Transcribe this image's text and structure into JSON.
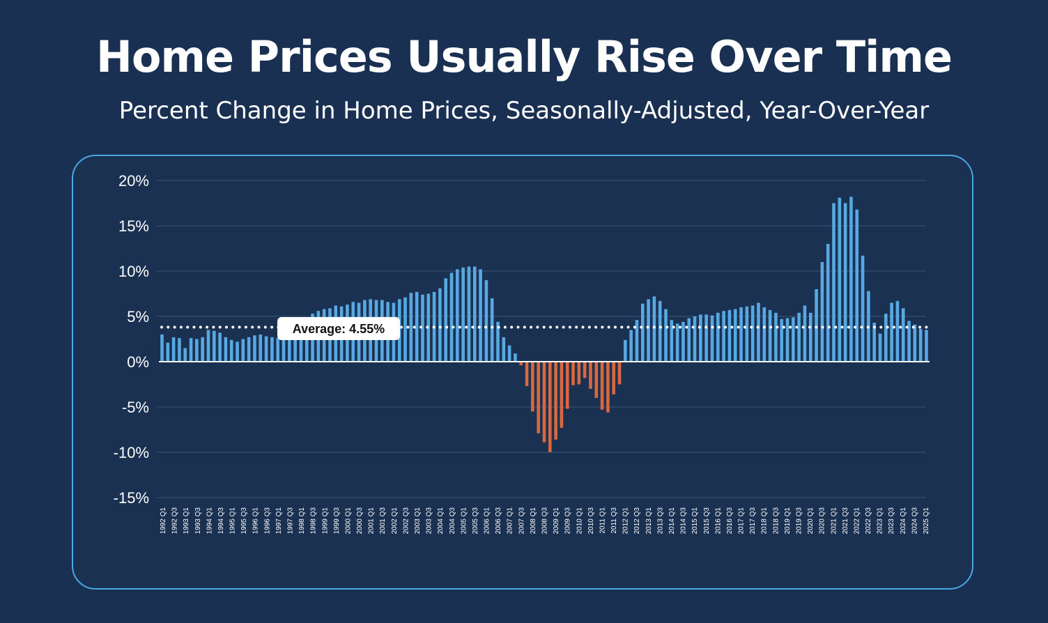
{
  "title": "Home Prices Usually Rise Over Time",
  "subtitle": "Percent Change in Home Prices, Seasonally-Adjusted, Year-Over-Year",
  "colors": {
    "background": "#1a3052",
    "positive_bar": "#58a9e2",
    "negative_bar": "#d9683f",
    "panel_border": "#4aa8e8",
    "gridline": "#3e5676"
  },
  "chart_data": {
    "type": "bar",
    "title": "",
    "xlabel": "",
    "ylabel": "",
    "ylim": [
      -15,
      20
    ],
    "yticks": [
      20,
      15,
      10,
      5,
      0,
      -5,
      -10,
      -15
    ],
    "ytick_labels": [
      "20%",
      "15%",
      "10%",
      "5%",
      "0%",
      "-5%",
      "-10%",
      "-15%"
    ],
    "grid": true,
    "average": {
      "value": 4.55,
      "label": "Average: 4.55%"
    },
    "categories": [
      "1992 Q1",
      "1992 Q2",
      "1992 Q3",
      "1992 Q4",
      "1993 Q1",
      "1993 Q2",
      "1993 Q3",
      "1993 Q4",
      "1994 Q1",
      "1994 Q2",
      "1994 Q3",
      "1994 Q4",
      "1995 Q1",
      "1995 Q2",
      "1995 Q3",
      "1995 Q4",
      "1996 Q1",
      "1996 Q2",
      "1996 Q3",
      "1996 Q4",
      "1997 Q1",
      "1997 Q2",
      "1997 Q3",
      "1997 Q4",
      "1998 Q1",
      "1998 Q2",
      "1998 Q3",
      "1998 Q4",
      "1999 Q1",
      "1999 Q2",
      "1999 Q3",
      "1999 Q4",
      "2000 Q1",
      "2000 Q2",
      "2000 Q3",
      "2000 Q4",
      "2001 Q1",
      "2001 Q2",
      "2001 Q3",
      "2001 Q4",
      "2002 Q1",
      "2002 Q2",
      "2002 Q3",
      "2002 Q4",
      "2003 Q1",
      "2003 Q2",
      "2003 Q3",
      "2003 Q4",
      "2004 Q1",
      "2004 Q2",
      "2004 Q3",
      "2004 Q4",
      "2005 Q1",
      "2005 Q2",
      "2005 Q3",
      "2005 Q4",
      "2006 Q1",
      "2006 Q2",
      "2006 Q3",
      "2006 Q4",
      "2007 Q1",
      "2007 Q2",
      "2007 Q3",
      "2007 Q4",
      "2008 Q1",
      "2008 Q2",
      "2008 Q3",
      "2008 Q4",
      "2009 Q1",
      "2009 Q2",
      "2009 Q3",
      "2009 Q4",
      "2010 Q1",
      "2010 Q2",
      "2010 Q3",
      "2010 Q4",
      "2011 Q1",
      "2011 Q2",
      "2011 Q3",
      "2011 Q4",
      "2012 Q1",
      "2012 Q2",
      "2012 Q3",
      "2012 Q4",
      "2013 Q1",
      "2013 Q2",
      "2013 Q3",
      "2013 Q4",
      "2014 Q1",
      "2014 Q2",
      "2014 Q3",
      "2014 Q4",
      "2015 Q1",
      "2015 Q2",
      "2015 Q3",
      "2015 Q4",
      "2016 Q1",
      "2016 Q2",
      "2016 Q3",
      "2016 Q4",
      "2017 Q1",
      "2017 Q2",
      "2017 Q3",
      "2017 Q4",
      "2018 Q1",
      "2018 Q2",
      "2018 Q3",
      "2018 Q4",
      "2019 Q1",
      "2019 Q2",
      "2019 Q3",
      "2019 Q4",
      "2020 Q1",
      "2020 Q2",
      "2020 Q3",
      "2020 Q4",
      "2021 Q1",
      "2021 Q2",
      "2021 Q3",
      "2021 Q4",
      "2022 Q1",
      "2022 Q2",
      "2022 Q3",
      "2022 Q4",
      "2023 Q1",
      "2023 Q2",
      "2023 Q3",
      "2023 Q4",
      "2024 Q1",
      "2024 Q2",
      "2024 Q3",
      "2024 Q4",
      "2025 Q1"
    ],
    "tick_labels": [
      "1992 Q1",
      "1992 Q3",
      "1993 Q1",
      "1993 Q3",
      "1994 Q1",
      "1994 Q3",
      "1995 Q1",
      "1995 Q3",
      "1996 Q1",
      "1996 Q3",
      "1997 Q1",
      "1997 Q3",
      "1998 Q1",
      "1998 Q3",
      "1999 Q1",
      "1999 Q3",
      "2000 Q1",
      "2000 Q3",
      "2001 Q1",
      "2001 Q3",
      "2002 Q1",
      "2002 Q3",
      "2003 Q1",
      "2003 Q3",
      "2004 Q1",
      "2004 Q3",
      "2005 Q1",
      "2005 Q3",
      "2006 Q1",
      "2006 Q3",
      "2007 Q1",
      "2007 Q3",
      "2008 Q1",
      "2008 Q3",
      "2009 Q1",
      "2009 Q3",
      "2010 Q1",
      "2010 Q3",
      "2011 Q1",
      "2011 Q3",
      "2012 Q1",
      "2012 Q3",
      "2013 Q1",
      "2013 Q3",
      "2014 Q1",
      "2014 Q3",
      "2015 Q1",
      "2015 Q3",
      "2016 Q1",
      "2016 Q3",
      "2017 Q1",
      "2017 Q3",
      "2018 Q1",
      "2018 Q3",
      "2019 Q1",
      "2019 Q3",
      "2020 Q1",
      "2020 Q3",
      "2021 Q1",
      "2021 Q3",
      "2022 Q1",
      "2022 Q3",
      "2023 Q1",
      "2023 Q3",
      "2024 Q1",
      "2024 Q3",
      "2025 Q1"
    ],
    "values": [
      3.0,
      2.1,
      2.7,
      2.6,
      1.5,
      2.6,
      2.5,
      2.7,
      3.5,
      3.4,
      3.2,
      2.7,
      2.4,
      2.2,
      2.5,
      2.7,
      2.9,
      3.0,
      2.8,
      2.7,
      2.6,
      2.8,
      3.3,
      3.8,
      4.3,
      4.6,
      5.3,
      5.6,
      5.8,
      5.9,
      6.2,
      6.1,
      6.3,
      6.6,
      6.5,
      6.8,
      6.9,
      6.8,
      6.8,
      6.6,
      6.5,
      6.9,
      7.1,
      7.6,
      7.7,
      7.4,
      7.5,
      7.7,
      8.1,
      9.2,
      9.8,
      10.2,
      10.4,
      10.5,
      10.5,
      10.2,
      9.0,
      7.0,
      4.4,
      2.7,
      1.8,
      0.9,
      -0.4,
      -2.7,
      -5.5,
      -7.9,
      -8.9,
      -10.0,
      -8.6,
      -7.3,
      -5.2,
      -2.6,
      -2.5,
      -1.8,
      -3.0,
      -4.0,
      -5.3,
      -5.6,
      -3.6,
      -2.5,
      2.4,
      3.5,
      4.6,
      6.4,
      6.9,
      7.2,
      6.7,
      5.8,
      4.6,
      4.2,
      4.4,
      4.8,
      5.0,
      5.2,
      5.2,
      5.1,
      5.4,
      5.6,
      5.7,
      5.8,
      6.0,
      6.1,
      6.2,
      6.5,
      6.0,
      5.7,
      5.4,
      4.7,
      4.8,
      4.9,
      5.4,
      6.2,
      5.4,
      8.0,
      11.0,
      13.0,
      17.5,
      18.1,
      17.5,
      18.2,
      16.8,
      11.7,
      7.8,
      4.3,
      3.1,
      5.3,
      6.5,
      6.7,
      5.9,
      4.5,
      4.1,
      3.6,
      3.5
    ]
  }
}
